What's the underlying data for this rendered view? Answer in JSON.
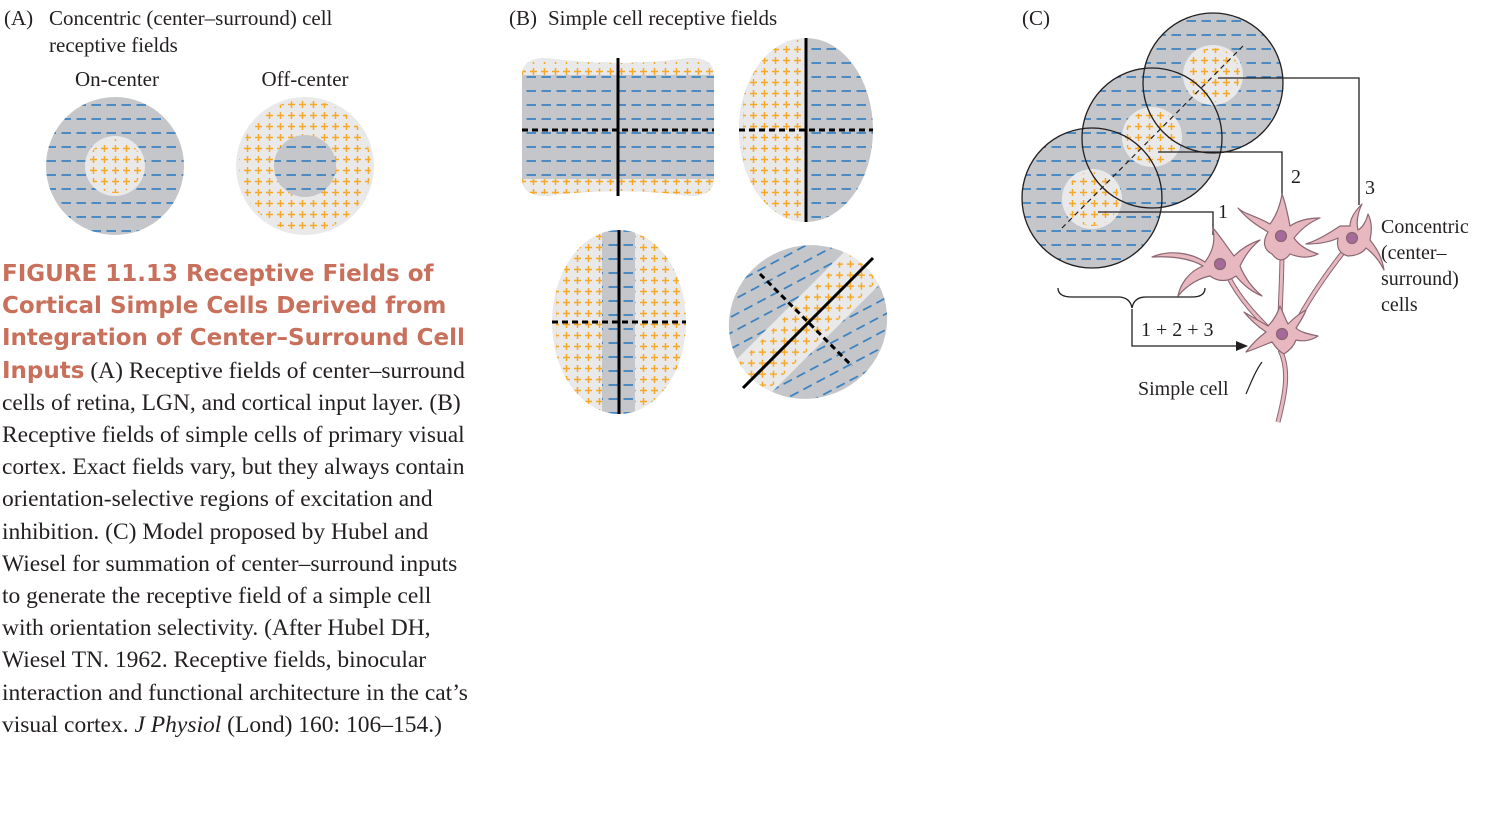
{
  "panel_a": {
    "label": "(A)",
    "title_line1": "Concentric (center–surround) cell",
    "title_line2": "receptive fields",
    "on_center": "On-center",
    "off_center": "Off-center"
  },
  "panel_b": {
    "label": "(B)",
    "title": "Simple cell receptive fields"
  },
  "panel_c": {
    "label": "(C)",
    "num1": "1",
    "num2": "2",
    "num3": "3",
    "concentric_line1": "Concentric",
    "concentric_line2": "(center–",
    "concentric_line3": "surround)",
    "concentric_line4": "cells",
    "sum_label": "1 + 2 + 3",
    "simple_cell": "Simple cell"
  },
  "caption": {
    "figure_title": "FIGURE 11.13 Receptive Fields of Cortical Simple Cells Derived from Integration of Center–Surround Cell Inputs",
    "body_before_journal": " (A) Receptive fields of center–surround cells of retina, LGN, and cortical input layer. (B) Receptive fields of simple cells of primary visual cortex. Exact fields vary, but they always contain orientation-selective regions of excitation and inhibition. (C) Model proposed by Hubel and Wiesel for summation of center–surround inputs to generate the receptive field of a simple cell with orientation selectivity. (After Hubel DH, Wiesel TN. 1962. Receptive fields, binocular interaction and functional architecture in the cat’s visual cortex. ",
    "journal": "J Physiol",
    "body_after_journal": " (Lond) 160: 106–154.)"
  },
  "colors": {
    "gray": "#c4c6c9",
    "light": "#e9e9ea",
    "blue_dash": "#2e7bc0",
    "orange_plus": "#f7a823",
    "neuron_fill": "#e8b8c0",
    "neuron_stroke": "#8a6670",
    "nucleus": "#a56a9b",
    "title_red": "#c8705b"
  }
}
